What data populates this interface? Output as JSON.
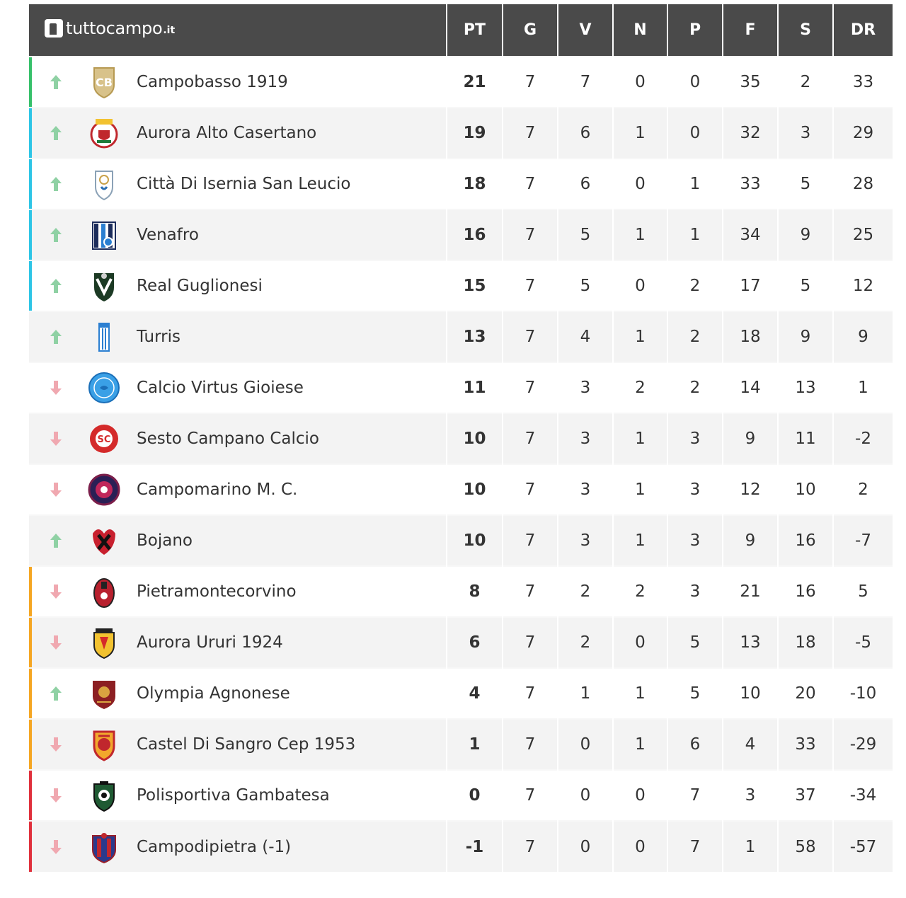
{
  "brand": {
    "name": "tuttocampo",
    "tld": ".it"
  },
  "columns": [
    "PT",
    "G",
    "V",
    "N",
    "P",
    "F",
    "S",
    "DR"
  ],
  "colors": {
    "header_bg": "#4a4a4a",
    "promotion_green": "#36c06a",
    "playoff_cyan": "#2ec5e6",
    "playout_orange": "#f5a623",
    "relegation_red": "#e0303c",
    "arrow_up": "#8fd1a4",
    "arrow_down": "#f0a8b0"
  },
  "rows": [
    {
      "zone": "#36c06a",
      "trend": "up",
      "logo": "campobasso-crest",
      "team": "Campobasso 1919",
      "pt": "21",
      "g": "7",
      "v": "7",
      "n": "0",
      "p": "0",
      "f": "35",
      "s": "2",
      "dr": "33"
    },
    {
      "zone": "#2ec5e6",
      "trend": "up",
      "logo": "aurora-alto-casertano-crest",
      "team": "Aurora Alto Casertano",
      "pt": "19",
      "g": "7",
      "v": "6",
      "n": "1",
      "p": "0",
      "f": "32",
      "s": "3",
      "dr": "29"
    },
    {
      "zone": "#2ec5e6",
      "trend": "up",
      "logo": "isernia-crest",
      "team": "Città Di Isernia San Leucio",
      "pt": "18",
      "g": "7",
      "v": "6",
      "n": "0",
      "p": "1",
      "f": "33",
      "s": "5",
      "dr": "28"
    },
    {
      "zone": "#2ec5e6",
      "trend": "up",
      "logo": "venafro-crest",
      "team": "Venafro",
      "pt": "16",
      "g": "7",
      "v": "5",
      "n": "1",
      "p": "1",
      "f": "34",
      "s": "9",
      "dr": "25"
    },
    {
      "zone": "#2ec5e6",
      "trend": "up",
      "logo": "real-guglionesi-crest",
      "team": "Real Guglionesi",
      "pt": "15",
      "g": "7",
      "v": "5",
      "n": "0",
      "p": "2",
      "f": "17",
      "s": "5",
      "dr": "12"
    },
    {
      "zone": "",
      "trend": "up",
      "logo": "turris-crest",
      "team": "Turris",
      "pt": "13",
      "g": "7",
      "v": "4",
      "n": "1",
      "p": "2",
      "f": "18",
      "s": "9",
      "dr": "9"
    },
    {
      "zone": "",
      "trend": "down",
      "logo": "virtus-gioiese-crest",
      "team": "Calcio Virtus Gioiese",
      "pt": "11",
      "g": "7",
      "v": "3",
      "n": "2",
      "p": "2",
      "f": "14",
      "s": "13",
      "dr": "1"
    },
    {
      "zone": "",
      "trend": "down",
      "logo": "sesto-campano-crest",
      "team": "Sesto Campano Calcio",
      "pt": "10",
      "g": "7",
      "v": "3",
      "n": "1",
      "p": "3",
      "f": "9",
      "s": "11",
      "dr": "-2"
    },
    {
      "zone": "",
      "trend": "down",
      "logo": "campomarino-crest",
      "team": "Campomarino M. C.",
      "pt": "10",
      "g": "7",
      "v": "3",
      "n": "1",
      "p": "3",
      "f": "12",
      "s": "10",
      "dr": "2"
    },
    {
      "zone": "",
      "trend": "up",
      "logo": "bojano-crest",
      "team": "Bojano",
      "pt": "10",
      "g": "7",
      "v": "3",
      "n": "1",
      "p": "3",
      "f": "9",
      "s": "16",
      "dr": "-7"
    },
    {
      "zone": "#f5a623",
      "trend": "down",
      "logo": "pietramontecorvino-crest",
      "team": "Pietramontecorvino",
      "pt": "8",
      "g": "7",
      "v": "2",
      "n": "2",
      "p": "3",
      "f": "21",
      "s": "16",
      "dr": "5"
    },
    {
      "zone": "#f5a623",
      "trend": "down",
      "logo": "aurora-ururi-crest",
      "team": "Aurora Ururi 1924",
      "pt": "6",
      "g": "7",
      "v": "2",
      "n": "0",
      "p": "5",
      "f": "13",
      "s": "18",
      "dr": "-5"
    },
    {
      "zone": "#f5a623",
      "trend": "up",
      "logo": "olympia-agnonese-crest",
      "team": "Olympia Agnonese",
      "pt": "4",
      "g": "7",
      "v": "1",
      "n": "1",
      "p": "5",
      "f": "10",
      "s": "20",
      "dr": "-10"
    },
    {
      "zone": "#f5a623",
      "trend": "down",
      "logo": "castel-di-sangro-crest",
      "team": "Castel Di Sangro Cep 1953",
      "pt": "1",
      "g": "7",
      "v": "0",
      "n": "1",
      "p": "6",
      "f": "4",
      "s": "33",
      "dr": "-29"
    },
    {
      "zone": "#e0303c",
      "trend": "down",
      "logo": "gambatesa-crest",
      "team": "Polisportiva Gambatesa",
      "pt": "0",
      "g": "7",
      "v": "0",
      "n": "0",
      "p": "7",
      "f": "3",
      "s": "37",
      "dr": "-34"
    },
    {
      "zone": "#e0303c",
      "trend": "down",
      "logo": "campodipietra-crest",
      "team": "Campodipietra (-1)",
      "pt": "-1",
      "g": "7",
      "v": "0",
      "n": "0",
      "p": "7",
      "f": "1",
      "s": "58",
      "dr": "-57"
    }
  ]
}
